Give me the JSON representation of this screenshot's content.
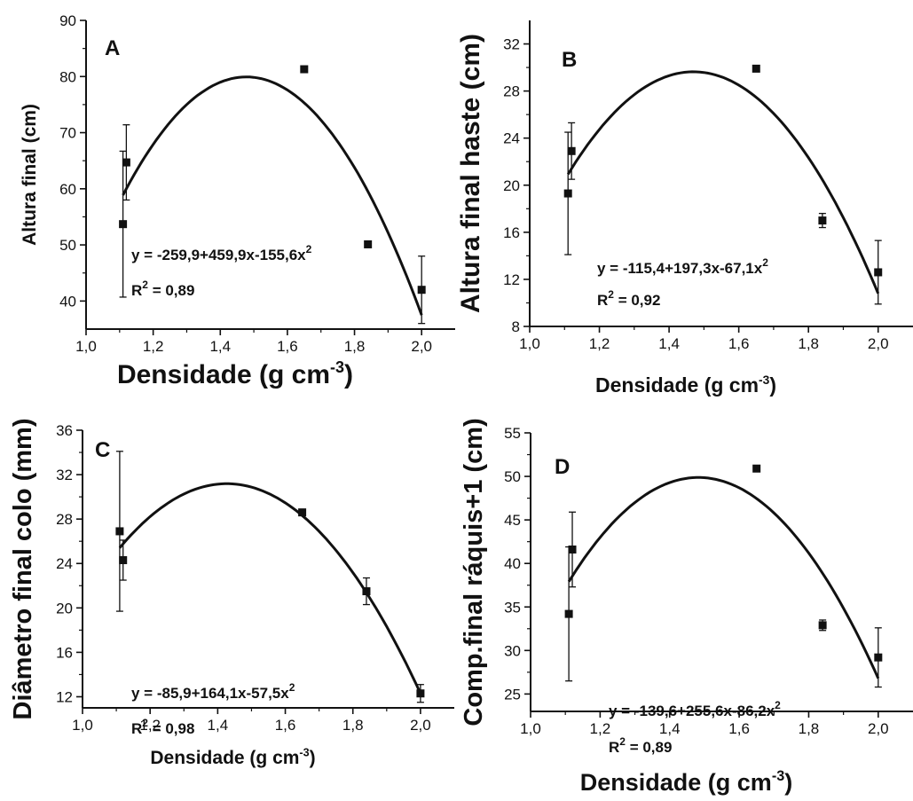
{
  "chart_data": [
    {
      "type": "scatter",
      "panel_label": "A",
      "xlabel": "Densidade  (g cm",
      "xlabel_sup": "-3",
      "xlabel_tail": ")",
      "ylabel": "Altura final (cm)",
      "xlim": [
        1.0,
        2.1
      ],
      "ylim": [
        35,
        90
      ],
      "xticks": [
        "1,0",
        "1,2",
        "1,4",
        "1,6",
        "1,8",
        "2,0"
      ],
      "yticks": [
        "40",
        "50",
        "60",
        "70",
        "80",
        "90"
      ],
      "points": [
        {
          "x": 1.11,
          "y": 53.7,
          "err": 13.0
        },
        {
          "x": 1.12,
          "y": 64.7,
          "err": 6.7
        },
        {
          "x": 1.65,
          "y": 81.3,
          "err": 0
        },
        {
          "x": 1.84,
          "y": 50.1,
          "err": 0
        },
        {
          "x": 2.0,
          "y": 42.0,
          "err": 6.0
        }
      ],
      "fit": {
        "a": -259.9,
        "b": 459.9,
        "c": -155.6,
        "x_range": [
          1.11,
          2.0
        ]
      },
      "equation": "y = -259,9+459,9x-155,6x",
      "equation_sup": "2",
      "r2_label": "R",
      "r2_sup": "2",
      "r2_value": " = 0,89"
    },
    {
      "type": "scatter",
      "panel_label": "B",
      "xlabel": "Densidade  (g cm",
      "xlabel_sup": "-3",
      "xlabel_tail": ")",
      "ylabel": "Altura  final haste  (cm)",
      "xlim": [
        1.0,
        2.1
      ],
      "ylim": [
        8,
        34
      ],
      "xticks": [
        "1,0",
        "1,2",
        "1,4",
        "1,6",
        "1,8",
        "2,0"
      ],
      "yticks": [
        "8",
        "12",
        "16",
        "20",
        "24",
        "28",
        "32"
      ],
      "points": [
        {
          "x": 1.11,
          "y": 19.3,
          "err": 5.2
        },
        {
          "x": 1.12,
          "y": 22.9,
          "err": 2.4
        },
        {
          "x": 1.65,
          "y": 29.9,
          "err": 0
        },
        {
          "x": 1.84,
          "y": 17.0,
          "err": 0.6
        },
        {
          "x": 2.0,
          "y": 12.6,
          "err": 2.7
        }
      ],
      "fit": {
        "a": -115.4,
        "b": 197.3,
        "c": -67.1,
        "x_range": [
          1.11,
          2.0
        ]
      },
      "equation": "y = -115,4+197,3x-67,1x",
      "equation_sup": "2",
      "r2_label": "R",
      "r2_sup": "2",
      "r2_value": " = 0,92"
    },
    {
      "type": "scatter",
      "panel_label": "C",
      "xlabel": "Densidade  (g cm",
      "xlabel_sup": "-3",
      "xlabel_tail": ")",
      "ylabel": "Diâmetro final colo (mm)",
      "xlim": [
        1.0,
        2.1
      ],
      "ylim": [
        11,
        36
      ],
      "xticks": [
        "1,0",
        "1,2",
        "1,4",
        "1,6",
        "1,8",
        "2,0"
      ],
      "yticks": [
        "12",
        "16",
        "20",
        "24",
        "28",
        "32",
        "36"
      ],
      "points": [
        {
          "x": 1.11,
          "y": 26.9,
          "err": 7.2
        },
        {
          "x": 1.12,
          "y": 24.3,
          "err": 1.8
        },
        {
          "x": 1.65,
          "y": 28.6,
          "err": 0
        },
        {
          "x": 1.84,
          "y": 21.5,
          "err": 1.2
        },
        {
          "x": 2.0,
          "y": 12.3,
          "err": 0.8
        }
      ],
      "fit": {
        "a": -85.9,
        "b": 164.1,
        "c": -57.5,
        "x_range": [
          1.11,
          2.0
        ]
      },
      "equation": "y = -85,9+164,1x-57,5x",
      "equation_sup": "2",
      "r2_label": "R",
      "r2_sup": "2",
      "r2_value": " = 0,98"
    },
    {
      "type": "scatter",
      "panel_label": "D",
      "xlabel": "Densidade  (g cm",
      "xlabel_sup": "-3",
      "xlabel_tail": ")",
      "ylabel": "Comp.final ráquis+1 (cm)",
      "xlim": [
        1.0,
        2.1
      ],
      "ylim": [
        23,
        55
      ],
      "xticks": [
        "1,0",
        "1,2",
        "1,4",
        "1,6",
        "1,8",
        "2,0"
      ],
      "yticks": [
        "25",
        "30",
        "35",
        "40",
        "45",
        "50",
        "55"
      ],
      "points": [
        {
          "x": 1.11,
          "y": 34.2,
          "err": 7.7
        },
        {
          "x": 1.12,
          "y": 41.6,
          "err": 4.3
        },
        {
          "x": 1.65,
          "y": 50.9,
          "err": 0
        },
        {
          "x": 1.84,
          "y": 32.9,
          "err": 0.6
        },
        {
          "x": 2.0,
          "y": 29.2,
          "err": 3.4
        }
      ],
      "fit": {
        "a": -139.6,
        "b": 255.6,
        "c": -86.2,
        "x_range": [
          1.11,
          2.0
        ]
      },
      "equation": "y = -139,6+255,6x-86,2x",
      "equation_sup": "2",
      "r2_label": "R",
      "r2_sup": "2",
      "r2_value": " = 0,89"
    }
  ]
}
